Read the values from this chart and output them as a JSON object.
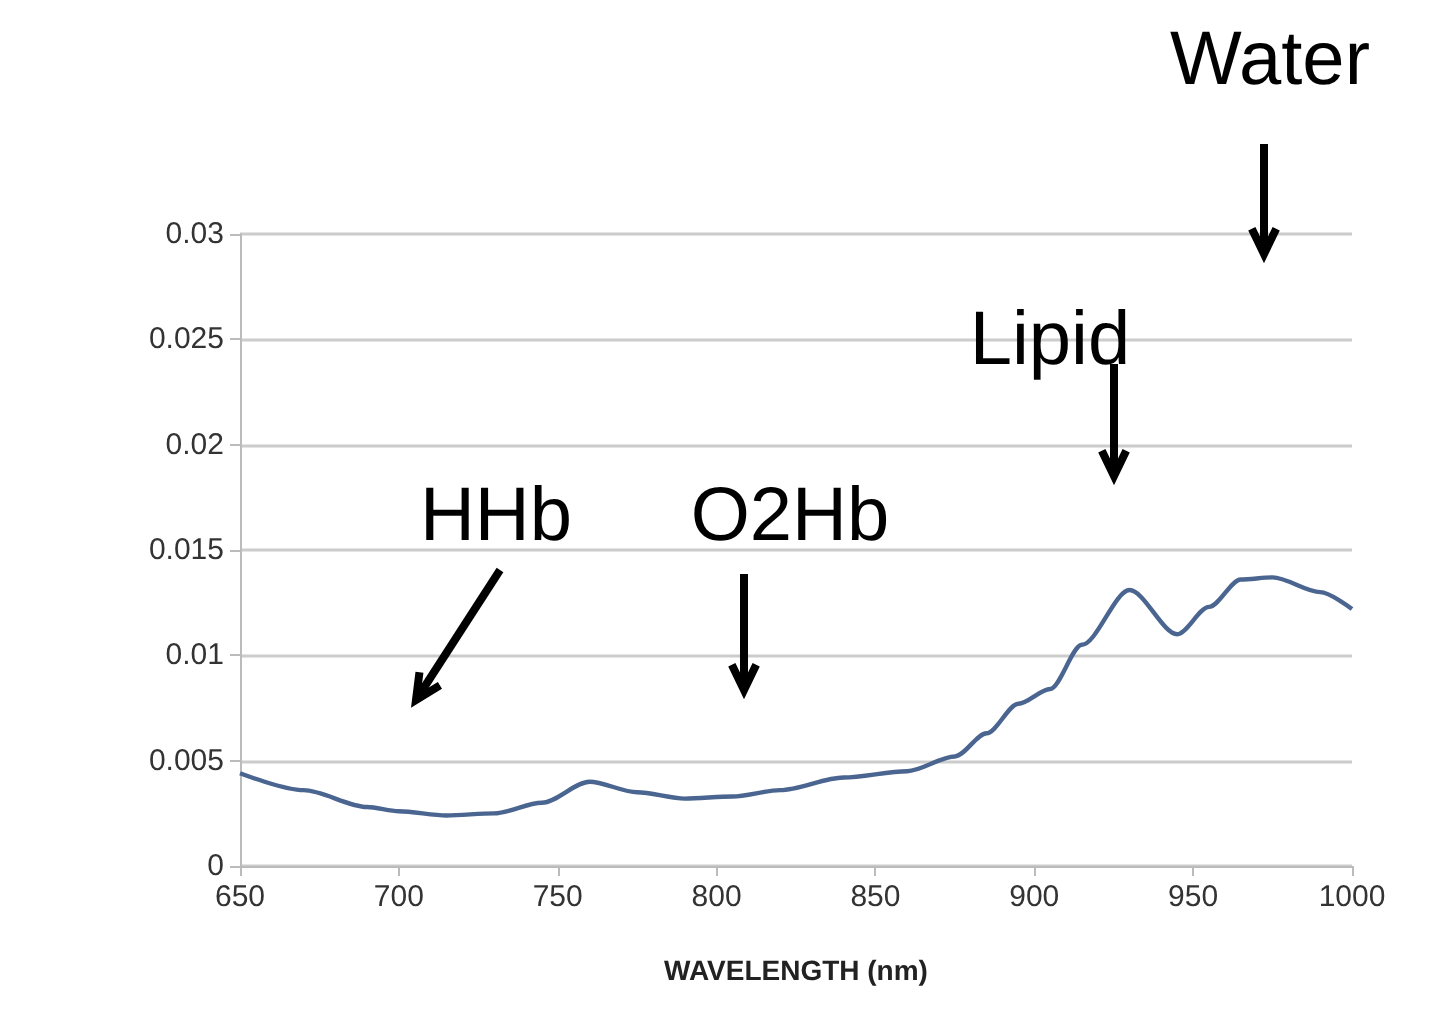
{
  "chart_data": {
    "type": "line",
    "xlabel": "WAVELENGTH (nm)",
    "x": [
      650,
      670,
      690,
      700,
      715,
      730,
      745,
      760,
      775,
      790,
      805,
      820,
      840,
      860,
      875,
      885,
      895,
      905,
      915,
      930,
      945,
      955,
      965,
      975,
      990,
      1000
    ],
    "series": [
      {
        "color": "#4a6590",
        "values": [
          0.0044,
          0.0036,
          0.0028,
          0.0026,
          0.0024,
          0.0025,
          0.003,
          0.004,
          0.0035,
          0.0032,
          0.0033,
          0.0036,
          0.0042,
          0.0045,
          0.0052,
          0.0063,
          0.0077,
          0.0084,
          0.0105,
          0.0131,
          0.011,
          0.0123,
          0.0136,
          0.0137,
          0.013,
          0.0122
        ]
      }
    ],
    "xlim": [
      650,
      1000
    ],
    "xticks": [
      650,
      700,
      750,
      800,
      850,
      900,
      950,
      1000
    ],
    "ylim": [
      0,
      0.03
    ],
    "yticks": [
      0,
      0.005,
      0.01,
      0.015,
      0.02,
      0.025,
      0.03
    ],
    "grid": "y",
    "marker": "none",
    "line_style": "solid",
    "annotations": [
      "HHb",
      "O2Hb",
      "Lipid",
      "Water"
    ]
  }
}
